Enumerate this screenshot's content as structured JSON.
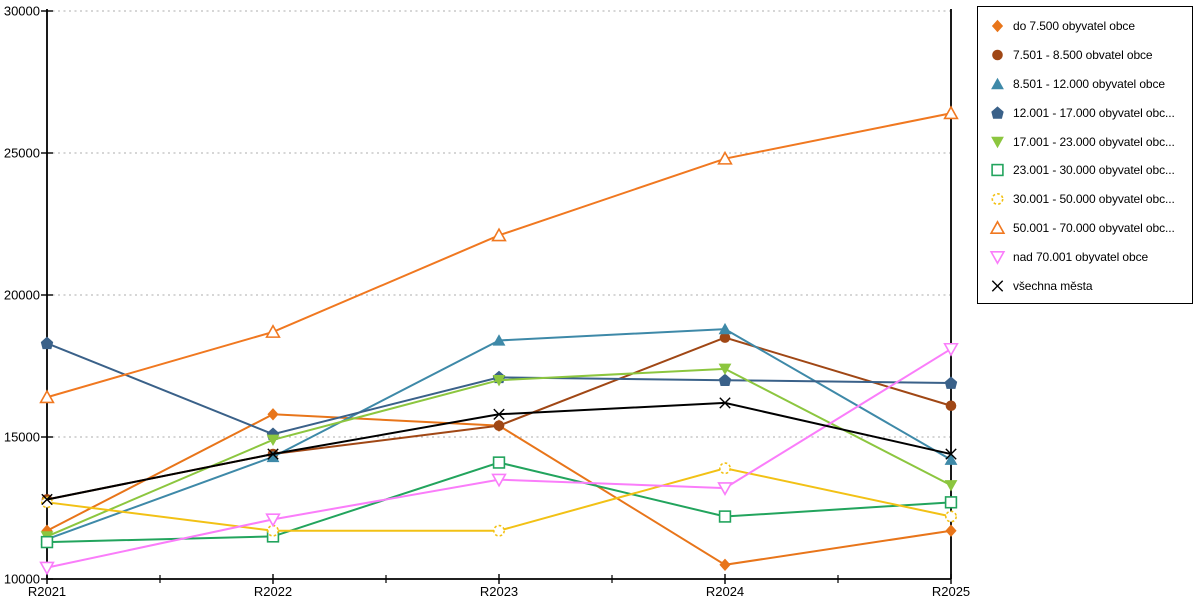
{
  "chart_data": {
    "type": "line",
    "categories": [
      "R2021",
      "R2022",
      "R2023",
      "R2024",
      "R2025"
    ],
    "ylim": [
      10000,
      30000
    ],
    "ytick_labels": [
      "10000",
      "15000",
      "20000",
      "25000",
      "30000"
    ],
    "grid": "horizontal-dotted",
    "legend_position": "outside-top-right",
    "axis_color": "#000000",
    "grid_color": "#ADADAD",
    "series": [
      {
        "label": "do 7.500 obyvatel obce",
        "color": "#E8751A",
        "marker": "diamond",
        "fill": true,
        "values": [
          11700,
          15800,
          15400,
          10500,
          11700
        ]
      },
      {
        "label": "7.501 - 8.500 obvatel obce",
        "color": "#A04715",
        "marker": "circle",
        "fill": true,
        "values": [
          12800,
          14400,
          15400,
          18500,
          16100
        ]
      },
      {
        "label": "8.501 - 12.000 obyvatel obce",
        "color": "#3E89A8",
        "marker": "triangle-up",
        "fill": true,
        "values": [
          11400,
          14300,
          18400,
          18800,
          14200
        ]
      },
      {
        "label": "12.001 - 17.000 obyvatel obc...",
        "color": "#3A6189",
        "marker": "pentagon",
        "fill": true,
        "values": [
          18300,
          15100,
          17100,
          17000,
          16900
        ]
      },
      {
        "label": "17.001 - 23.000 obyvatel obc...",
        "color": "#8CC63F",
        "marker": "triangle-down",
        "fill": true,
        "values": [
          11500,
          14900,
          17000,
          17400,
          13300
        ]
      },
      {
        "label": "23.001 - 30.000 obyvatel obc...",
        "color": "#22A45D",
        "marker": "square",
        "fill": false,
        "values": [
          11300,
          11500,
          14100,
          12200,
          12700
        ]
      },
      {
        "label": "30.001 - 50.000 obyvatel obc...",
        "color": "#F2C115",
        "marker": "circle-dashed",
        "fill": false,
        "values": [
          12700,
          11700,
          11700,
          13900,
          12200
        ]
      },
      {
        "label": "50.001 - 70.000 obyvatel obc...",
        "color": "#F07820",
        "marker": "triangle-up",
        "fill": false,
        "values": [
          16400,
          18700,
          22100,
          24800,
          26400
        ]
      },
      {
        "label": "nad 70.001 obyvatel obce",
        "color": "#FA7DFA",
        "marker": "triangle-down",
        "fill": false,
        "values": [
          10400,
          12100,
          13500,
          13200,
          18100
        ]
      },
      {
        "label": "všechna města",
        "color": "#000000",
        "marker": "x",
        "fill": false,
        "values": [
          12800,
          14400,
          15800,
          16200,
          14400
        ]
      }
    ]
  }
}
